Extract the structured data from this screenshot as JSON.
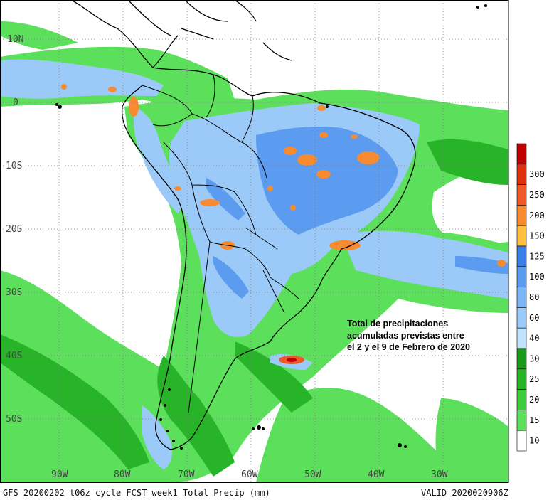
{
  "map": {
    "lat_labels": [
      "10N",
      "0",
      "10S",
      "20S",
      "30S",
      "40S",
      "50S"
    ],
    "lon_labels": [
      "90W",
      "80W",
      "70W",
      "60W",
      "50W",
      "40W",
      "30W"
    ],
    "footer_left": "GFS 20200202 t06z cycle FCST week1 Total Precip (mm)",
    "footer_right": "VALID 2020020906Z"
  },
  "annotation": {
    "line1": "Total de precipitaciones",
    "line2": "acumuladas previstas entre",
    "line3": "el 2 y el 9 de Febrero de 2020"
  },
  "legend": {
    "unit": "mm",
    "levels": [
      {
        "value": "",
        "color": "#c00000"
      },
      {
        "value": "300",
        "color": "#e03010"
      },
      {
        "value": "250",
        "color": "#f05828"
      },
      {
        "value": "200",
        "color": "#f88a30"
      },
      {
        "value": "150",
        "color": "#ffc040"
      },
      {
        "value": "125",
        "color": "#3c7ee8"
      },
      {
        "value": "100",
        "color": "#5c9cf0"
      },
      {
        "value": "80",
        "color": "#7cb4f4"
      },
      {
        "value": "60",
        "color": "#9ccaf8"
      },
      {
        "value": "40",
        "color": "#c0e2fc"
      },
      {
        "value": "30",
        "color": "#1a9a1a"
      },
      {
        "value": "25",
        "color": "#28b428"
      },
      {
        "value": "20",
        "color": "#3ccc3c"
      },
      {
        "value": "15",
        "color": "#5ce05c"
      },
      {
        "value": "10",
        "color": "#ffffff"
      }
    ]
  }
}
